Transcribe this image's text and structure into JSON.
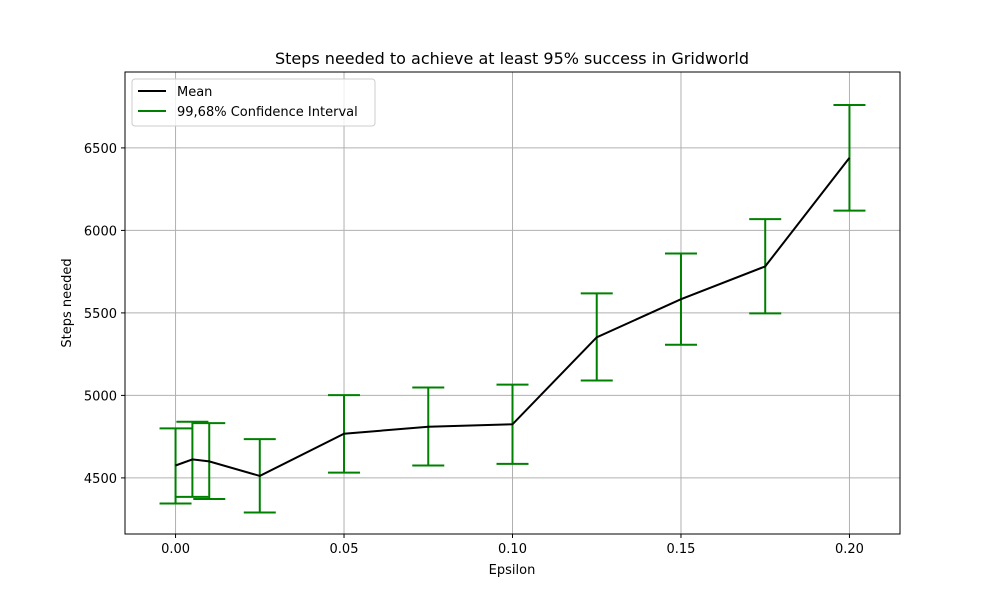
{
  "chart_data": {
    "type": "line",
    "title": "Steps needed to achieve at least 95% success in Gridworld",
    "xlabel": "Epsilon",
    "ylabel": "Steps needed",
    "xlim": [
      -0.015,
      0.215
    ],
    "ylim": [
      4160,
      6960
    ],
    "xticks": [
      "0.00",
      "0.05",
      "0.10",
      "0.15",
      "0.20"
    ],
    "xtick_values": [
      0.0,
      0.05,
      0.1,
      0.15,
      0.2
    ],
    "yticks": [
      "4500",
      "5000",
      "5500",
      "6000",
      "6500"
    ],
    "ytick_values": [
      4500,
      5000,
      5500,
      6000,
      6500
    ],
    "grid": true,
    "legend_position": "top-left",
    "colors": {
      "mean": "#000000",
      "ci": "#008000",
      "grid": "#b0b0b0"
    },
    "series": [
      {
        "name": "Mean",
        "x": [
          0.0,
          0.005,
          0.01,
          0.025,
          0.05,
          0.075,
          0.1,
          0.125,
          0.15,
          0.175,
          0.2
        ],
        "y": [
          4575,
          4612,
          4600,
          4512,
          4768,
          4810,
          4825,
          5352,
          5583,
          5782,
          6440
        ]
      },
      {
        "name": "99,68% Confidence Interval",
        "x": [
          0.0,
          0.005,
          0.01,
          0.025,
          0.05,
          0.075,
          0.1,
          0.125,
          0.15,
          0.175,
          0.2
        ],
        "lower": [
          4345,
          4385,
          4372,
          4290,
          4532,
          4575,
          4585,
          5090,
          5307,
          5497,
          6120
        ],
        "upper": [
          4800,
          4840,
          4832,
          4735,
          5002,
          5048,
          5065,
          5618,
          5860,
          6068,
          6760
        ]
      }
    ]
  }
}
